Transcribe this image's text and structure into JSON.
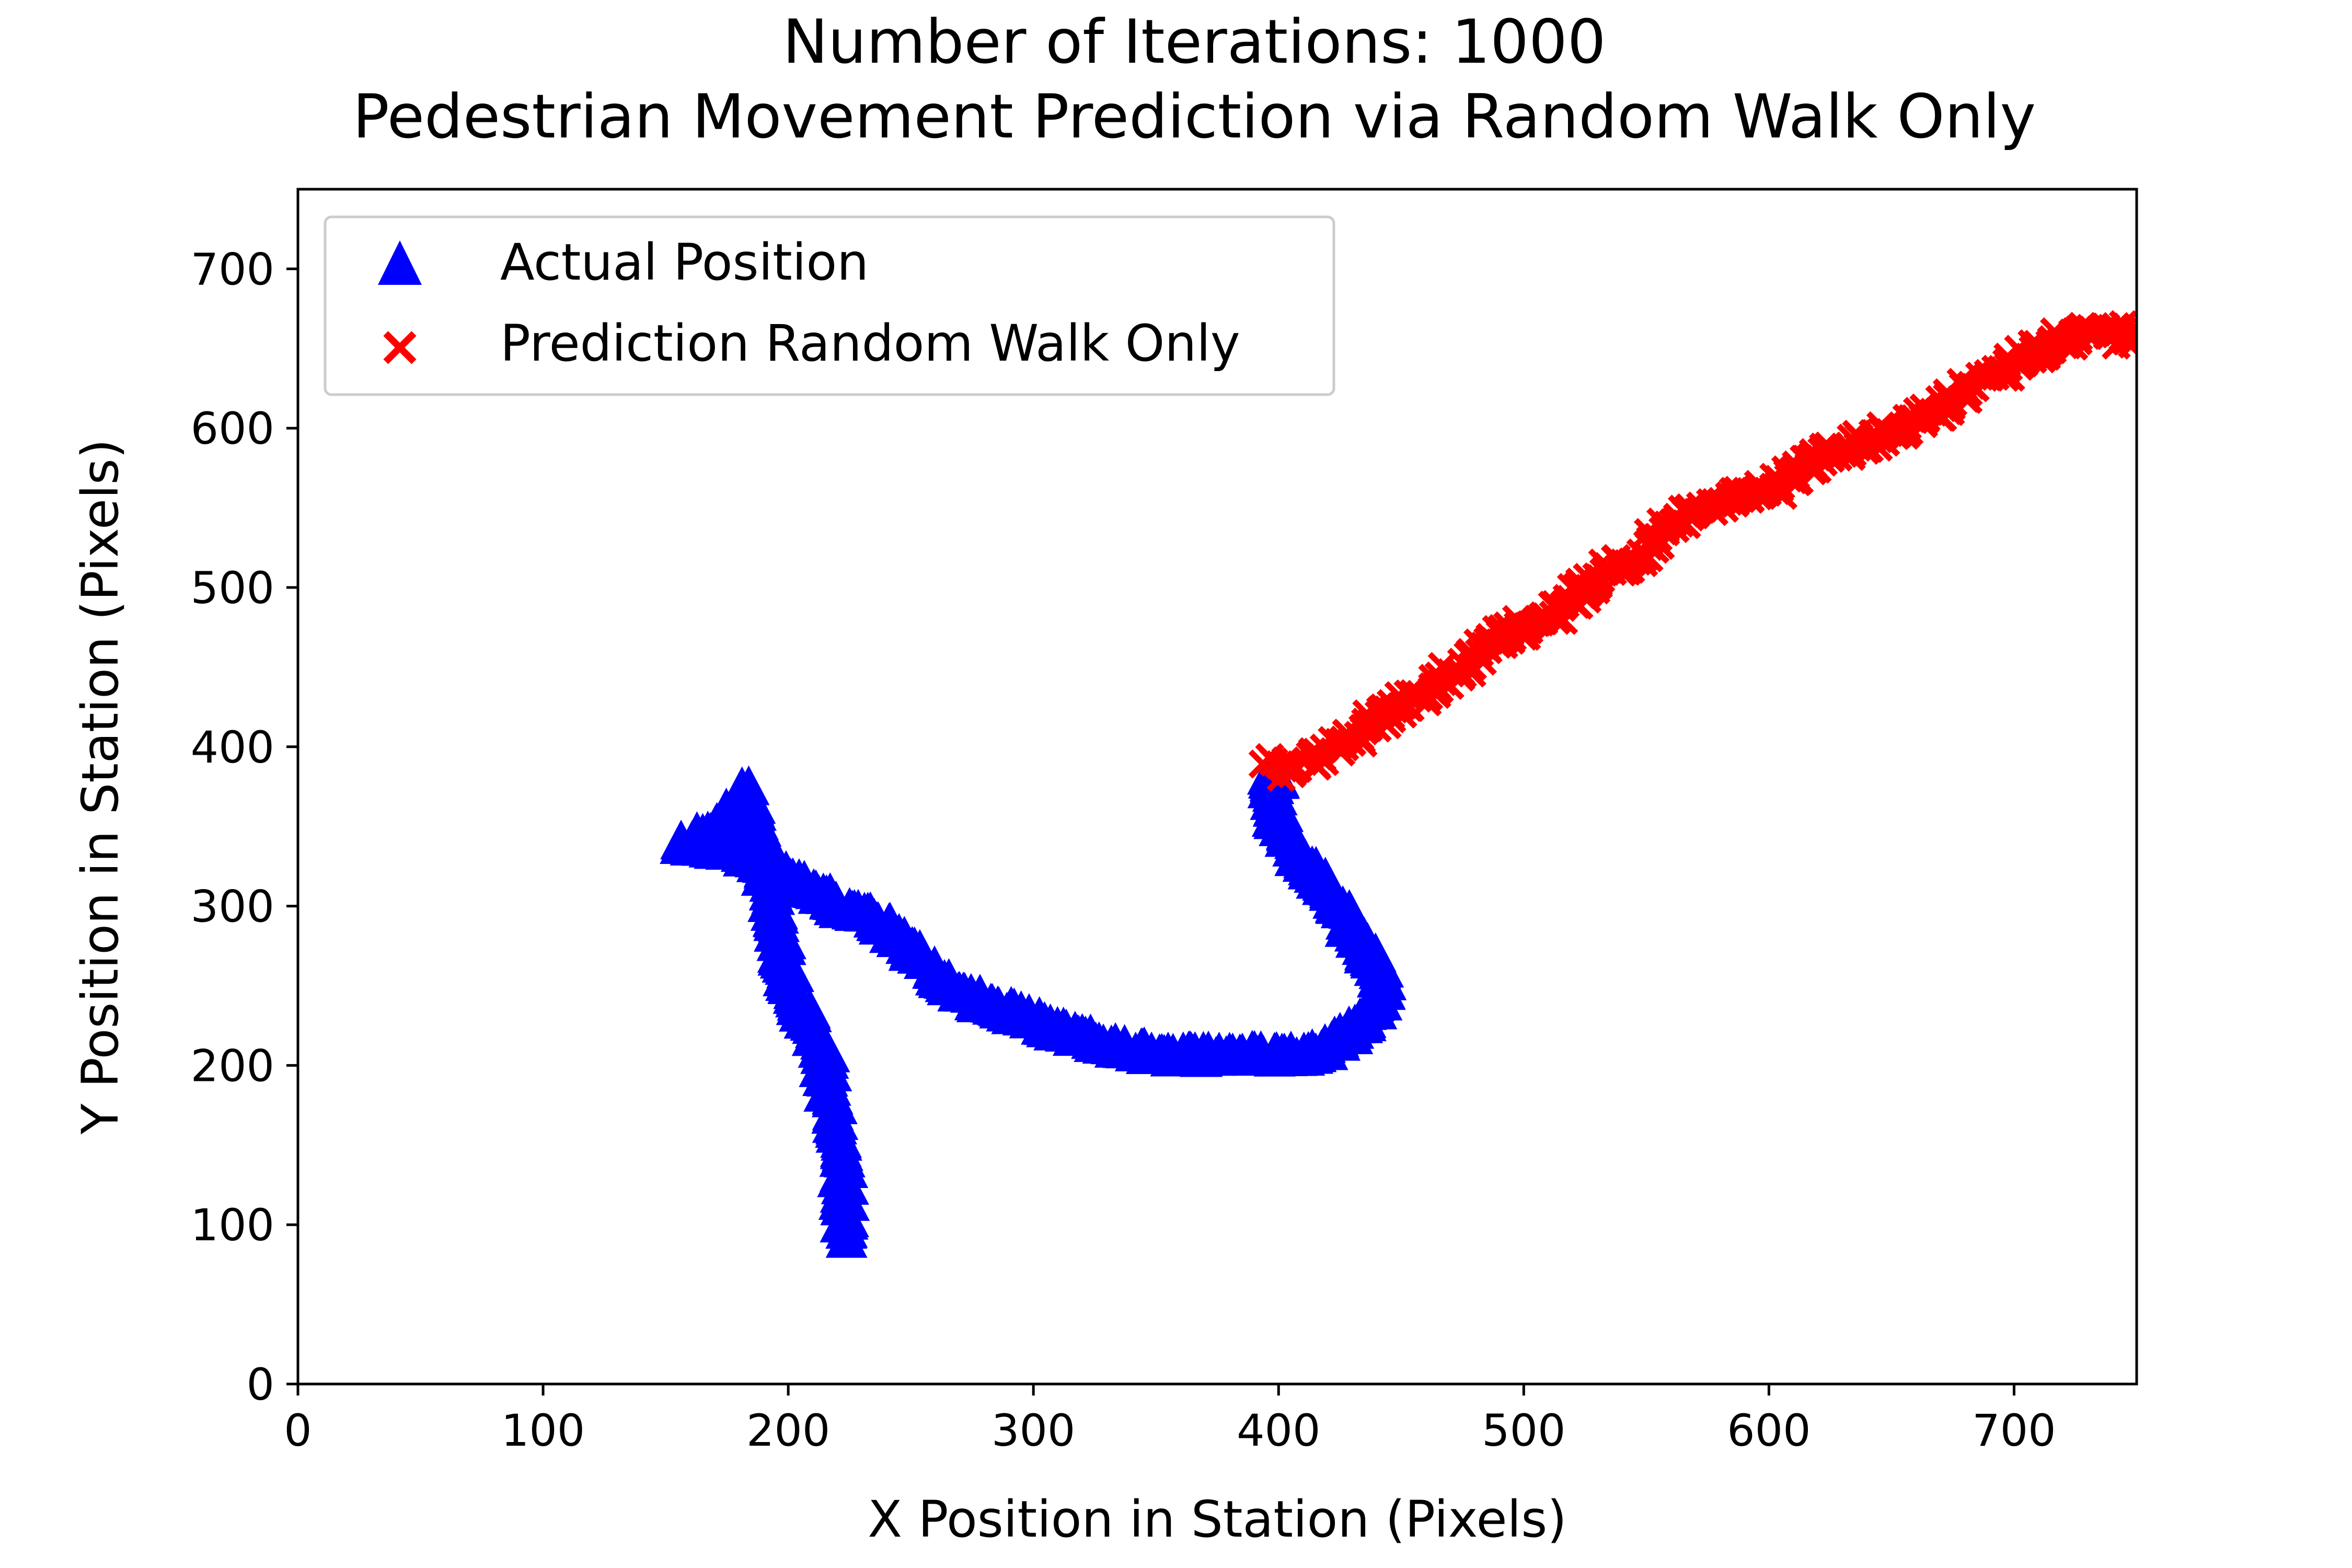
{
  "chart_data": {
    "type": "scatter",
    "title_line1": "Number of Iterations: 1000",
    "title_line2": "Pedestrian Movement Prediction via Random Walk Only",
    "xlabel": "X Position in Station (Pixels)",
    "ylabel": "Y Position in Station (Pixels)",
    "xlim": [
      0,
      750
    ],
    "ylim": [
      0,
      750
    ],
    "xticks": [
      0,
      100,
      200,
      300,
      400,
      500,
      600,
      700
    ],
    "yticks": [
      0,
      100,
      200,
      300,
      400,
      500,
      600,
      700
    ],
    "grid": false,
    "legend_position": "top-left",
    "series": [
      {
        "name": "Actual Position",
        "marker": "triangle-up",
        "color": "#0000ff",
        "points": [
          [
            223,
            92
          ],
          [
            223,
            110
          ],
          [
            222,
            130
          ],
          [
            221,
            150
          ],
          [
            219,
            170
          ],
          [
            216,
            190
          ],
          [
            214,
            210
          ],
          [
            210,
            228
          ],
          [
            203,
            240
          ],
          [
            200,
            255
          ],
          [
            198,
            270
          ],
          [
            196,
            285
          ],
          [
            194,
            300
          ],
          [
            192,
            315
          ],
          [
            190,
            330
          ],
          [
            188,
            345
          ],
          [
            185,
            360
          ],
          [
            183,
            375
          ],
          [
            178,
            360
          ],
          [
            170,
            350
          ],
          [
            163,
            342
          ],
          [
            158,
            340
          ],
          [
            168,
            338
          ],
          [
            178,
            336
          ],
          [
            188,
            330
          ],
          [
            195,
            322
          ],
          [
            203,
            316
          ],
          [
            212,
            308
          ],
          [
            220,
            302
          ],
          [
            230,
            296
          ],
          [
            240,
            288
          ],
          [
            248,
            278
          ],
          [
            255,
            268
          ],
          [
            262,
            255
          ],
          [
            270,
            245
          ],
          [
            280,
            240
          ],
          [
            290,
            235
          ],
          [
            300,
            228
          ],
          [
            310,
            222
          ],
          [
            320,
            218
          ],
          [
            330,
            213
          ],
          [
            340,
            210
          ],
          [
            350,
            208
          ],
          [
            360,
            207
          ],
          [
            370,
            207
          ],
          [
            380,
            207
          ],
          [
            390,
            207
          ],
          [
            400,
            207
          ],
          [
            410,
            207
          ],
          [
            420,
            212
          ],
          [
            428,
            220
          ],
          [
            435,
            230
          ],
          [
            440,
            240
          ],
          [
            442,
            252
          ],
          [
            440,
            265
          ],
          [
            435,
            278
          ],
          [
            428,
            292
          ],
          [
            422,
            305
          ],
          [
            416,
            318
          ],
          [
            410,
            330
          ],
          [
            405,
            342
          ],
          [
            400,
            355
          ],
          [
            397,
            368
          ],
          [
            398,
            380
          ]
        ]
      },
      {
        "name": "Prediction Random Walk Only",
        "marker": "x",
        "color": "#ff0000",
        "points": [
          [
            395,
            390
          ],
          [
            405,
            385
          ],
          [
            412,
            390
          ],
          [
            420,
            398
          ],
          [
            428,
            405
          ],
          [
            435,
            410
          ],
          [
            440,
            418
          ],
          [
            448,
            425
          ],
          [
            455,
            430
          ],
          [
            462,
            435
          ],
          [
            470,
            445
          ],
          [
            478,
            455
          ],
          [
            485,
            465
          ],
          [
            492,
            470
          ],
          [
            498,
            473
          ],
          [
            505,
            478
          ],
          [
            512,
            483
          ],
          [
            518,
            490
          ],
          [
            524,
            498
          ],
          [
            530,
            505
          ],
          [
            536,
            512
          ],
          [
            543,
            518
          ],
          [
            550,
            525
          ],
          [
            556,
            535
          ],
          [
            562,
            543
          ],
          [
            570,
            548
          ],
          [
            578,
            552
          ],
          [
            585,
            556
          ],
          [
            592,
            558
          ],
          [
            600,
            562
          ],
          [
            607,
            568
          ],
          [
            614,
            575
          ],
          [
            620,
            580
          ],
          [
            627,
            585
          ],
          [
            634,
            590
          ],
          [
            642,
            593
          ],
          [
            650,
            597
          ],
          [
            658,
            602
          ],
          [
            665,
            608
          ],
          [
            672,
            615
          ],
          [
            680,
            622
          ],
          [
            688,
            630
          ],
          [
            696,
            638
          ],
          [
            704,
            645
          ],
          [
            712,
            650
          ],
          [
            720,
            655
          ],
          [
            728,
            660
          ],
          [
            735,
            662
          ],
          [
            742,
            660
          ],
          [
            748,
            655
          ]
        ]
      }
    ]
  }
}
